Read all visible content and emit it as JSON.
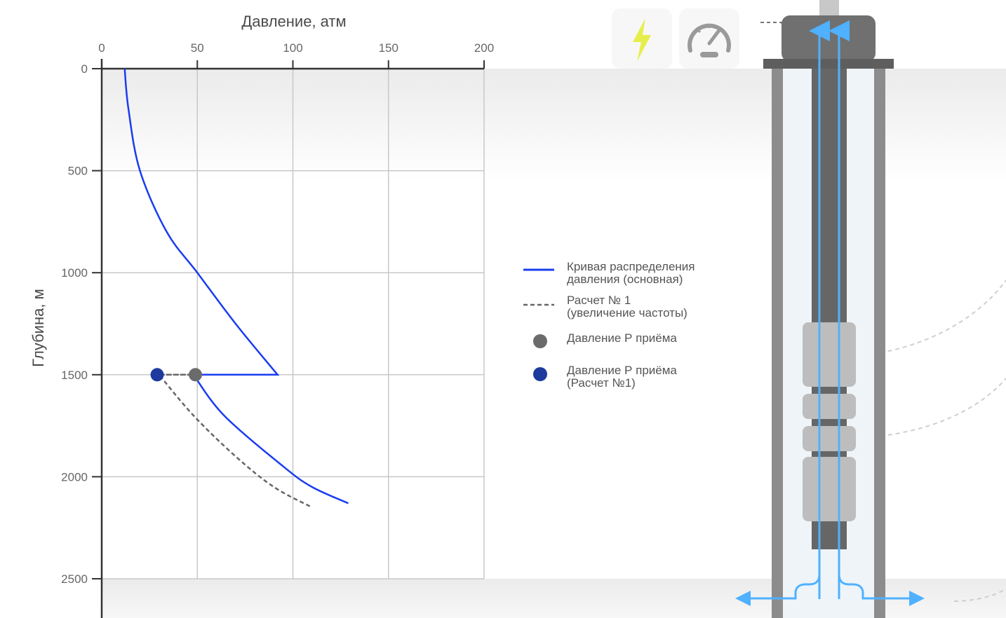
{
  "chart_data": {
    "type": "line",
    "xlabel": "Давление, атм",
    "ylabel": "Глубина, м",
    "xlim": [
      0,
      200
    ],
    "ylim": [
      0,
      2500
    ],
    "y_inverted": true,
    "x_axis_position": "top",
    "grid": true,
    "legend_position": "right",
    "x_ticks": [
      "0",
      "50",
      "100",
      "150",
      "200"
    ],
    "y_ticks": [
      "0",
      "500",
      "1000",
      "1500",
      "2000",
      "2500"
    ],
    "series": [
      {
        "name": "Кривая распределения давления (основная)",
        "style": "solid",
        "color": "#1a3df0",
        "points": [
          [
            12,
            0
          ],
          [
            14,
            200
          ],
          [
            20,
            500
          ],
          [
            34,
            800
          ],
          [
            50,
            1000
          ],
          [
            70,
            1250
          ],
          [
            92,
            1500
          ],
          [
            48,
            1500
          ],
          [
            64,
            1700
          ],
          [
            95,
            1950
          ],
          [
            110,
            2050
          ],
          [
            129,
            2130
          ]
        ]
      },
      {
        "name": "Расчет № 1 (увеличение частоты)",
        "style": "dashed",
        "color": "#666666",
        "points": [
          [
            30,
            1500
          ],
          [
            48,
            1500
          ],
          [
            30,
            1500
          ],
          [
            48,
            1700
          ],
          [
            70,
            1900
          ],
          [
            90,
            2050
          ],
          [
            110,
            2150
          ]
        ]
      }
    ],
    "markers": [
      {
        "name": "Давление Р приёма",
        "x": 49,
        "y": 1500,
        "color": "#6b6b6b"
      },
      {
        "name": "Давление Р приёма (Расчет №1)",
        "x": 29,
        "y": 1500,
        "color": "#1e3a9e"
      }
    ]
  },
  "legend": [
    {
      "kind": "line",
      "color": "#1a3df0",
      "label": "Кривая распределения\nдавления (основная)"
    },
    {
      "kind": "dashed",
      "color": "#666666",
      "label": "Расчет № 1\n(увеличение частоты)"
    },
    {
      "kind": "dot",
      "color": "#6b6b6b",
      "label": "Давление Р приёма"
    },
    {
      "kind": "dot",
      "color": "#1e3a9e",
      "label": "Давление Р приёма\n(Расчет №1)"
    }
  ],
  "icons": {
    "power": {
      "name": "lightning-bolt-icon",
      "color": "#e6ee4a"
    },
    "gauge": {
      "name": "pressure-gauge-icon",
      "color": "#9a9a9a"
    }
  },
  "well": {
    "flow_color": "#4fb1ff",
    "casing_color": "#8c8c8c",
    "tubing_color": "#666666"
  }
}
